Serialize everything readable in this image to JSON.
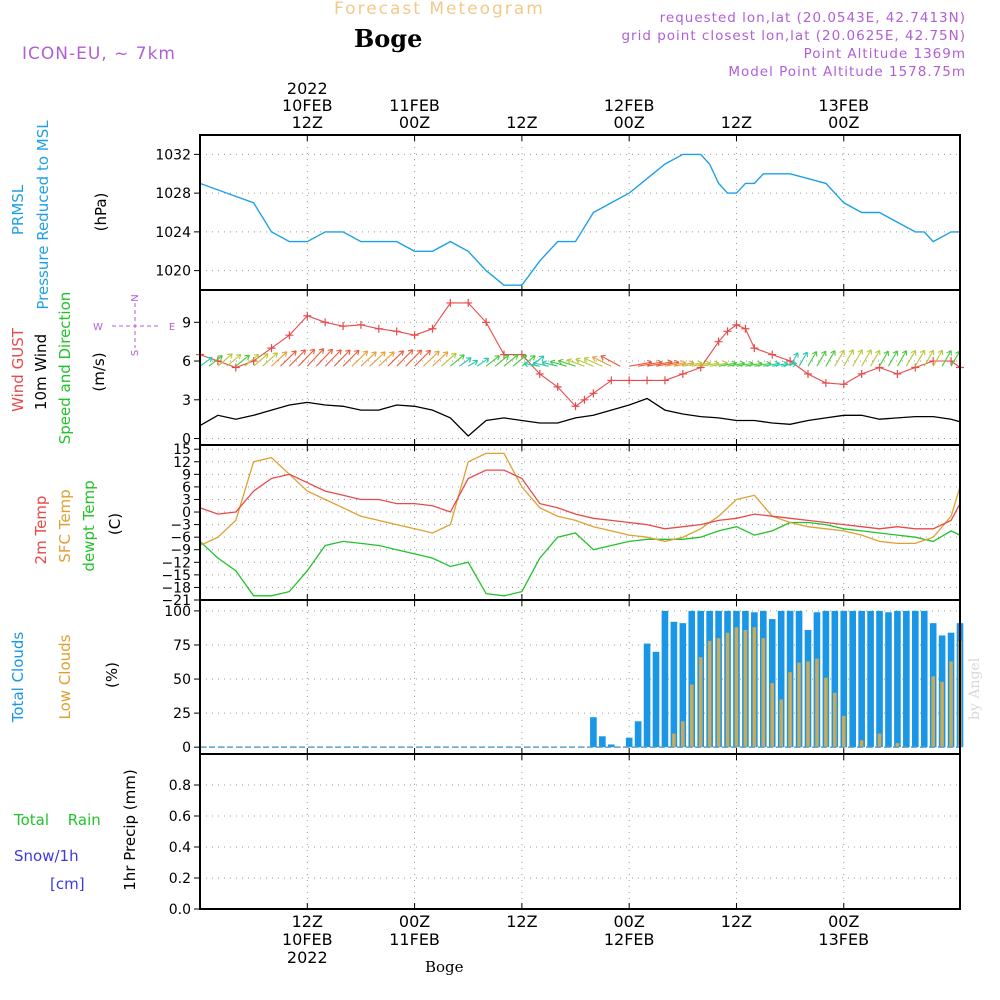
{
  "header": {
    "title": "Forecast Meteogram",
    "place": "Boge",
    "model": "ICON-EU, ~ 7km",
    "requested": "requested lon,lat (20.0543E, 42.7413N)",
    "grid_point": "grid point closest lon,lat (20.0625E, 42.75N)",
    "point_altitude": "Point Altitude 1369m",
    "model_altitude": "Model Point Altitude 1578.75m"
  },
  "time_axis": {
    "top_ticks": [
      {
        "h": 12,
        "lines": [
          "2022",
          "10FEB",
          "12Z"
        ]
      },
      {
        "h": 24,
        "lines": [
          "11FEB",
          "00Z"
        ]
      },
      {
        "h": 36,
        "lines": [
          "12Z"
        ]
      },
      {
        "h": 48,
        "lines": [
          "12FEB",
          "00Z"
        ]
      },
      {
        "h": 60,
        "lines": [
          "12Z"
        ]
      },
      {
        "h": 72,
        "lines": [
          "13FEB",
          "00Z"
        ]
      }
    ],
    "bottom_ticks": [
      {
        "h": 12,
        "lines": [
          "12Z",
          "10FEB",
          "2022"
        ]
      },
      {
        "h": 24,
        "lines": [
          "00Z",
          "11FEB"
        ]
      },
      {
        "h": 36,
        "lines": [
          "12Z"
        ]
      },
      {
        "h": 48,
        "lines": [
          "00Z",
          "12FEB"
        ]
      },
      {
        "h": 60,
        "lines": [
          "12Z"
        ]
      },
      {
        "h": 72,
        "lines": [
          "00Z",
          "13FEB"
        ]
      }
    ]
  },
  "panel_labels": {
    "pressure": {
      "line1": "PRMSL",
      "line2": "Pressure Reduced to MSL",
      "unit": "(hPa)"
    },
    "wind": {
      "gust": "Wind GUST",
      "wind10": "10m Wind",
      "speed_dir": "Speed and Direction",
      "unit": "(m/s)",
      "compass": {
        "n": "N",
        "s": "S",
        "w": "W",
        "e": "E"
      }
    },
    "temp": {
      "t2m": "2m Temp",
      "sfc": "SFC Temp",
      "dewpt": "dewpt Temp",
      "unit": "(C)"
    },
    "clouds": {
      "total": "Total Clouds",
      "low": "Low Clouds",
      "unit": "(%)"
    },
    "precip": {
      "total_rain": "Total Rain",
      "snow": "Snow/1h",
      "cm": "[cm]",
      "unit": "1hr Precip (mm)"
    }
  },
  "colors": {
    "pressure": "#1ea0e6",
    "gust": "#e84a4a",
    "wind": "#000000",
    "t2m": "#e84a4a",
    "sfc": "#dea032",
    "dewpt": "#22c32a",
    "total_clouds": "#1996e6",
    "low_clouds": "#c8aa5a",
    "snow_label": "#3a3ae0",
    "rain_label": "#22c32a",
    "purple": "#b05fd6"
  },
  "watermark": "by Angel",
  "footer": "Boge",
  "chart_data": [
    {
      "type": "line",
      "name": "PRMSL",
      "xlabel": "",
      "ylabel": "(hPa)",
      "yticks": [
        1020,
        1024,
        1028,
        1032
      ],
      "ylim": [
        1018,
        1034
      ],
      "grid": true,
      "x": [
        0,
        3,
        6,
        8,
        10,
        12,
        14,
        16,
        18,
        20,
        22,
        24,
        26,
        28,
        30,
        32,
        34,
        36,
        38,
        39,
        40,
        42,
        44,
        46,
        48,
        50,
        52,
        54,
        56,
        57,
        58,
        59,
        60,
        61,
        62,
        63,
        64,
        66,
        68,
        70,
        72,
        74,
        76,
        78,
        80,
        81,
        82,
        84,
        85
      ],
      "values": [
        1029,
        1028,
        1027,
        1024,
        1023,
        1023,
        1024,
        1024,
        1023,
        1023,
        1023,
        1022,
        1022,
        1023,
        1022,
        1020,
        1018.5,
        1018.5,
        1021,
        1022,
        1023,
        1023,
        1026,
        1027,
        1028,
        1029.5,
        1031,
        1032,
        1032,
        1031,
        1029,
        1028,
        1028,
        1029,
        1029,
        1030,
        1030,
        1030,
        1029.5,
        1029,
        1027,
        1026,
        1026,
        1025,
        1024,
        1024,
        1023,
        1024,
        1024
      ]
    },
    {
      "type": "line",
      "name": "Wind",
      "ylabel": "(m/s)",
      "yticks": [
        0,
        3,
        6,
        9
      ],
      "ylim": [
        -0.5,
        11.5
      ],
      "grid": true,
      "series": [
        {
          "name": "Wind GUST",
          "marker": "+",
          "x": [
            0,
            2,
            4,
            6,
            8,
            10,
            12,
            14,
            16,
            18,
            20,
            22,
            24,
            26,
            28,
            30,
            32,
            34,
            36,
            38,
            40,
            42,
            43,
            44,
            46,
            48,
            50,
            52,
            54,
            56,
            58,
            59,
            60,
            61,
            62,
            64,
            66,
            68,
            70,
            72,
            74,
            76,
            78,
            80,
            82,
            84,
            85
          ],
          "values": [
            6.5,
            6,
            5.5,
            6,
            7,
            8,
            9.5,
            9,
            8.7,
            8.8,
            8.5,
            8.3,
            8,
            8.5,
            10.5,
            10.5,
            9,
            6.5,
            6.5,
            5,
            4,
            2.5,
            3,
            3.5,
            4.5,
            4.5,
            4.5,
            4.5,
            5,
            5.5,
            7.5,
            8.3,
            8.8,
            8.5,
            7,
            6.5,
            6,
            5,
            4.3,
            4.2,
            5,
            5.5,
            5,
            5.5,
            6,
            6,
            5.5
          ]
        },
        {
          "name": "10m Wind",
          "x": [
            0,
            2,
            4,
            6,
            8,
            10,
            12,
            14,
            16,
            18,
            20,
            22,
            24,
            26,
            28,
            30,
            32,
            34,
            36,
            38,
            40,
            42,
            44,
            46,
            48,
            50,
            52,
            54,
            56,
            58,
            60,
            62,
            64,
            66,
            68,
            70,
            72,
            74,
            76,
            78,
            80,
            82,
            84,
            85
          ],
          "values": [
            1,
            1.8,
            1.5,
            1.8,
            2.2,
            2.6,
            2.8,
            2.6,
            2.5,
            2.2,
            2.2,
            2.6,
            2.5,
            2.2,
            1.6,
            0.2,
            1.4,
            1.6,
            1.4,
            1.2,
            1.2,
            1.6,
            1.8,
            2.2,
            2.6,
            3.1,
            2.2,
            1.9,
            1.7,
            1.6,
            1.4,
            1.4,
            1.2,
            1.1,
            1.4,
            1.6,
            1.8,
            1.8,
            1.5,
            1.6,
            1.7,
            1.7,
            1.5,
            1.3
          ]
        }
      ]
    },
    {
      "type": "line",
      "name": "Temperature",
      "ylabel": "(C)",
      "yticks": [
        15,
        12,
        9,
        6,
        3,
        0,
        -3,
        -6,
        -9,
        -12,
        -15,
        -18,
        -21
      ],
      "ylim": [
        -21,
        16
      ],
      "grid": true,
      "series": [
        {
          "name": "2m Temp",
          "x": [
            0,
            2,
            4,
            6,
            8,
            10,
            12,
            14,
            16,
            18,
            20,
            22,
            24,
            26,
            28,
            30,
            32,
            34,
            36,
            38,
            40,
            42,
            44,
            46,
            48,
            50,
            52,
            54,
            56,
            58,
            60,
            62,
            64,
            66,
            68,
            70,
            72,
            74,
            76,
            78,
            80,
            82,
            84,
            85
          ],
          "values": [
            1,
            -0.5,
            0,
            5,
            8,
            9,
            7,
            5,
            4,
            3,
            3,
            2,
            2,
            1.5,
            0,
            8,
            10,
            10,
            8,
            2,
            1,
            -0.5,
            -1.5,
            -2,
            -2.5,
            -3,
            -4,
            -3.5,
            -3,
            -2,
            -1.5,
            -0.5,
            -1,
            -1.5,
            -2,
            -2.5,
            -3,
            -3.5,
            -4,
            -3.5,
            -4,
            -4,
            -2,
            2
          ]
        },
        {
          "name": "SFC Temp",
          "x": [
            0,
            2,
            4,
            6,
            8,
            10,
            12,
            14,
            16,
            18,
            20,
            22,
            24,
            26,
            28,
            30,
            32,
            34,
            36,
            38,
            40,
            42,
            44,
            46,
            48,
            50,
            52,
            54,
            56,
            58,
            60,
            62,
            64,
            66,
            68,
            70,
            72,
            74,
            76,
            78,
            80,
            82,
            84,
            85
          ],
          "values": [
            -8,
            -6,
            -2,
            12,
            13,
            9,
            5,
            3,
            1,
            -1,
            -2,
            -3,
            -4,
            -5,
            -3,
            12,
            14,
            14,
            6,
            1,
            -1,
            -2,
            -3.5,
            -4.5,
            -5.5,
            -6,
            -7,
            -6,
            -4,
            -1,
            3,
            4,
            -1,
            -2.5,
            -3.5,
            -4,
            -4.5,
            -5.5,
            -7,
            -7.5,
            -7.5,
            -6,
            -1,
            6
          ]
        },
        {
          "name": "dewpt Temp",
          "x": [
            0,
            1,
            2,
            4,
            6,
            8,
            10,
            12,
            14,
            16,
            18,
            20,
            22,
            24,
            26,
            28,
            30,
            32,
            34,
            36,
            38,
            40,
            42,
            44,
            46,
            48,
            50,
            52,
            54,
            56,
            58,
            60,
            62,
            64,
            66,
            68,
            70,
            72,
            74,
            76,
            78,
            80,
            82,
            84,
            85
          ],
          "values": [
            -7,
            -9,
            -11,
            -14,
            -20,
            -20,
            -19,
            -14,
            -8,
            -7,
            -7.5,
            -8,
            -9,
            -10,
            -11,
            -13,
            -12,
            -19.5,
            -20,
            -19,
            -11,
            -6,
            -5,
            -9,
            -8,
            -7,
            -6.5,
            -6.5,
            -6.5,
            -6,
            -4.5,
            -3.5,
            -5.5,
            -4.5,
            -2.5,
            -2.5,
            -3,
            -4,
            -4.5,
            -5,
            -5.5,
            -6,
            -7,
            -4.5,
            -5.5
          ]
        }
      ]
    },
    {
      "type": "bar",
      "name": "Clouds",
      "ylabel": "(%)",
      "yticks": [
        0,
        25,
        50,
        75,
        100
      ],
      "ylim": [
        -5,
        108
      ],
      "grid": true,
      "x": [
        39,
        40,
        41,
        42,
        43,
        44,
        45,
        46,
        47,
        48,
        49,
        50,
        51,
        52,
        53,
        54,
        55,
        56,
        57,
        58,
        59,
        60,
        61,
        62,
        63,
        64,
        65,
        66,
        67,
        68,
        69,
        70,
        71,
        72,
        73,
        74,
        75,
        76,
        77,
        78,
        79,
        80,
        81,
        82,
        83,
        84,
        85
      ],
      "series": [
        {
          "name": "Total Clouds",
          "values": [
            0,
            0,
            0,
            0,
            0,
            22,
            8,
            2,
            0,
            7,
            19,
            76,
            70,
            100,
            92,
            91,
            100,
            100,
            100,
            100,
            100,
            100,
            100,
            99,
            100,
            94,
            100,
            100,
            100,
            86,
            99,
            100,
            100,
            100,
            100,
            100,
            100,
            100,
            99,
            100,
            100,
            100,
            100,
            91,
            82,
            84,
            91
          ]
        },
        {
          "name": "Low Clouds",
          "values": [
            0,
            0,
            0,
            0,
            0,
            0,
            0,
            0,
            0,
            0,
            0,
            0,
            0,
            0,
            10,
            19,
            46,
            66,
            78,
            80,
            84,
            88,
            86,
            88,
            80,
            47,
            35,
            55,
            62,
            63,
            65,
            51,
            40,
            23,
            0,
            5,
            0,
            10,
            0,
            3,
            0,
            0,
            0,
            52,
            48,
            63,
            78
          ]
        }
      ]
    },
    {
      "type": "line",
      "name": "1hr Precip",
      "ylabel": "1hr Precip (mm)",
      "yticks": [
        0,
        0.2,
        0.4,
        0.6,
        0.8
      ],
      "ylim": [
        0,
        1.0
      ],
      "grid": true,
      "series": [
        {
          "name": "Total Rain",
          "x": [
            0,
            85
          ],
          "values": [
            0,
            0
          ]
        },
        {
          "name": "Snow/1h",
          "x": [
            0,
            85
          ],
          "values": [
            0,
            0
          ]
        }
      ]
    }
  ]
}
